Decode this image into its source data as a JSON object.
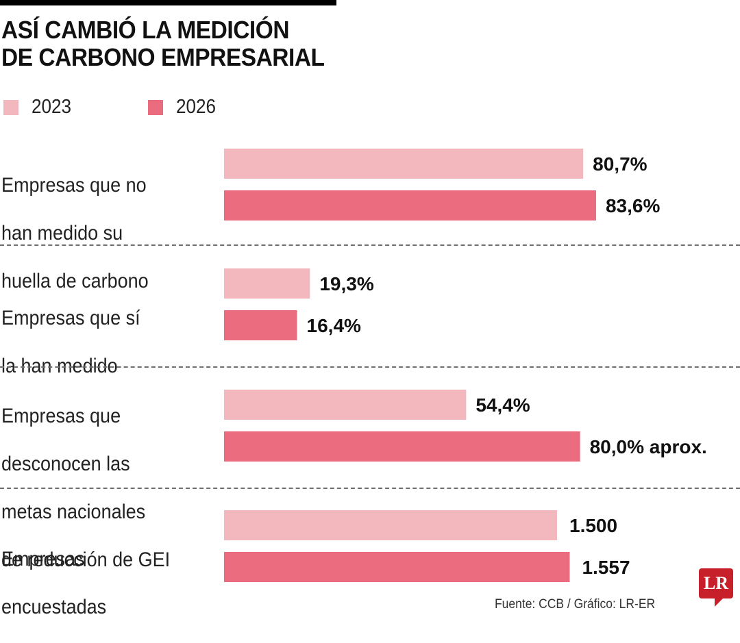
{
  "title": "ASÍ CAMBIÓ LA MEDICIÓN\nDE CARBONO EMPRESARIAL",
  "title_lines": [
    "ASÍ CAMBIÓ LA MEDICIÓN",
    "DE CARBONO EMPRESARIAL"
  ],
  "colors": {
    "series_2023": "#f2b8bd",
    "series_2026": "#ec6c7f",
    "logo": "#c8202a"
  },
  "legend": [
    {
      "label": "2023",
      "color": "#f2b8bd"
    },
    {
      "label": "2026",
      "color": "#ec6c7f"
    }
  ],
  "source": "Fuente: CCB / Gráfico: LR-ER",
  "logo_text": "LR",
  "chart_data": {
    "type": "bar",
    "orientation": "horizontal",
    "title": "ASÍ CAMBIÓ LA MEDICIÓN DE CARBONO EMPRESARIAL",
    "categories": [
      "Empresas que no han medido su huella de carbono",
      "Empresas que sí la han medido",
      "Empresas que desconocen las metas nacionales de reducción de GEI",
      "Empresas encuestadas"
    ],
    "category_label_lines": [
      [
        "Empresas que no",
        "han medido su",
        "huella de carbono"
      ],
      [
        "Empresas que sí",
        "la han medido"
      ],
      [
        "Empresas que",
        "desconocen las",
        "metas nacionales",
        "de reducción de GEI"
      ],
      [
        "Empresas",
        "encuestadas"
      ]
    ],
    "units": [
      "%",
      "%",
      "%",
      "count"
    ],
    "series": [
      {
        "name": "2023",
        "values": [
          80.7,
          19.3,
          54.4,
          1500
        ],
        "labels": [
          "80,7%",
          "19,3%",
          "54,4%",
          "1.500"
        ]
      },
      {
        "name": "2026",
        "values": [
          83.6,
          16.4,
          80.0,
          1557
        ],
        "labels": [
          "83,6%",
          "16,4%",
          "80,0% aprox.",
          "1.557"
        ]
      }
    ],
    "legend_position": "top-left",
    "grid": false,
    "group_separators": "dashed"
  }
}
